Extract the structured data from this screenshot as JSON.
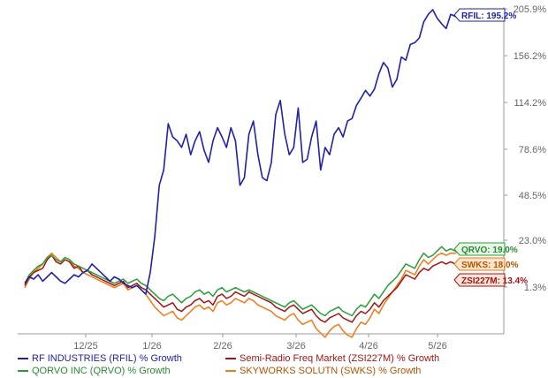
{
  "chart_data": {
    "type": "line",
    "x_ticks": [
      "12/25",
      "1/26",
      "2/26",
      "3/26",
      "4/26",
      "5/26"
    ],
    "y_ticks": [
      "205.9%",
      "156.2%",
      "114.2%",
      "78.6%",
      "48.5%",
      "23.0%",
      "1.3%"
    ],
    "grid": false,
    "series": [
      {
        "name": "RF INDUSTRIES (RFIL) % Growth",
        "short_label": "RFIL: 195.2%",
        "color": "#1f22a8",
        "label_fill": "#ffffff",
        "label_border": "#1f22a8",
        "label_text_color": "#1f22a8",
        "end_value": 195.2,
        "values": [
          3,
          6,
          5,
          7,
          4,
          6,
          8,
          6,
          4,
          3,
          5,
          7,
          6,
          8,
          9,
          12,
          10,
          8,
          6,
          4,
          6,
          5,
          3,
          2,
          1,
          2,
          0,
          -2,
          8,
          25,
          55,
          65,
          98,
          88,
          85,
          80,
          90,
          75,
          85,
          92,
          78,
          70,
          85,
          95,
          88,
          80,
          95,
          85,
          55,
          60,
          90,
          100,
          75,
          60,
          58,
          70,
          105,
          116,
          90,
          75,
          80,
          110,
          70,
          72,
          88,
          100,
          65,
          80,
          75,
          90,
          95,
          88,
          100,
          102,
          112,
          118,
          125,
          120,
          126,
          140,
          150,
          145,
          128,
          135,
          155,
          152,
          168,
          170,
          175,
          192,
          200,
          205,
          196,
          190,
          185,
          200,
          198,
          195
        ]
      },
      {
        "name": "Semi-Radio Freq Market (ZSI227M) % Growth",
        "short_label": "ZSI227M: 13.4%",
        "color": "#a31515",
        "label_fill": "#fbe4d8",
        "label_border": "#a31515",
        "label_text_color": "#a31515",
        "end_value": 13.4,
        "values": [
          2,
          6,
          8,
          9,
          10,
          14,
          16,
          13,
          12,
          14,
          13,
          10,
          11,
          8,
          9,
          7,
          6,
          5,
          4,
          3,
          2,
          3,
          4,
          1,
          2,
          3,
          1,
          0,
          -2,
          -4,
          -6,
          -8,
          -7,
          -6,
          -9,
          -10,
          -8,
          -7,
          -5,
          -4,
          -6,
          -5,
          -7,
          -3,
          -2,
          -4,
          -3,
          -1,
          -2,
          -3,
          -1,
          -2,
          -3,
          -4,
          -5,
          -6,
          -8,
          -9,
          -10,
          -8,
          -7,
          -9,
          -11,
          -10,
          -9,
          -12,
          -14,
          -15,
          -13,
          -12,
          -11,
          -13,
          -14,
          -15,
          -12,
          -10,
          -11,
          -9,
          -6,
          -8,
          -5,
          -3,
          -1,
          1,
          4,
          7,
          6,
          5,
          8,
          10,
          9,
          11,
          12,
          13,
          12,
          13,
          12,
          13.4
        ]
      },
      {
        "name": "QORVO INC (QRVO) % Growth",
        "short_label": "QRVO: 19.0%",
        "color": "#2a9d3a",
        "label_fill": "#e6f5e6",
        "label_border": "#2a9d3a",
        "label_text_color": "#2a8a33",
        "end_value": 19.0,
        "values": [
          3,
          7,
          9,
          11,
          12,
          15,
          16,
          14,
          13,
          15,
          14,
          12,
          11,
          10,
          9,
          8,
          7,
          6,
          5,
          4,
          3,
          4,
          5,
          3,
          4,
          5,
          3,
          2,
          0,
          -2,
          -4,
          -5,
          -3,
          -2,
          -4,
          -6,
          -4,
          -3,
          -1,
          0,
          -2,
          -1,
          -3,
          0,
          1,
          -1,
          0,
          1,
          0,
          -1,
          0,
          -1,
          -2,
          -3,
          -4,
          -5,
          -6,
          -7,
          -8,
          -6,
          -5,
          -7,
          -9,
          -8,
          -7,
          -9,
          -11,
          -12,
          -10,
          -9,
          -8,
          -10,
          -11,
          -12,
          -9,
          -7,
          -8,
          -5,
          -2,
          -4,
          -1,
          2,
          4,
          6,
          9,
          12,
          11,
          10,
          14,
          17,
          15,
          16,
          18,
          20,
          18,
          19,
          18,
          19
        ]
      },
      {
        "name": "SKYWORKS SOLUTN (SWKS) % Growth",
        "short_label": "SWKS: 18.0%",
        "color": "#f07a1a",
        "label_fill": "#fde4cc",
        "label_border": "#f07a1a",
        "label_text_color": "#b35400",
        "end_value": 18.0,
        "values": [
          1,
          5,
          8,
          10,
          12,
          15,
          17,
          15,
          13,
          15,
          14,
          11,
          10,
          8,
          7,
          6,
          5,
          4,
          3,
          2,
          1,
          2,
          3,
          0,
          1,
          2,
          0,
          -2,
          -5,
          -8,
          -10,
          -12,
          -11,
          -10,
          -13,
          -14,
          -12,
          -10,
          -8,
          -7,
          -9,
          -8,
          -10,
          -6,
          -5,
          -7,
          -6,
          -4,
          -5,
          -6,
          -4,
          -5,
          -7,
          -8,
          -9,
          -10,
          -12,
          -13,
          -14,
          -12,
          -11,
          -14,
          -16,
          -15,
          -14,
          -18,
          -20,
          -22,
          -19,
          -17,
          -16,
          -19,
          -21,
          -22,
          -18,
          -15,
          -16,
          -13,
          -9,
          -11,
          -7,
          -4,
          -1,
          2,
          5,
          9,
          8,
          7,
          11,
          14,
          12,
          14,
          16,
          17,
          16,
          17,
          17,
          18
        ]
      }
    ]
  }
}
